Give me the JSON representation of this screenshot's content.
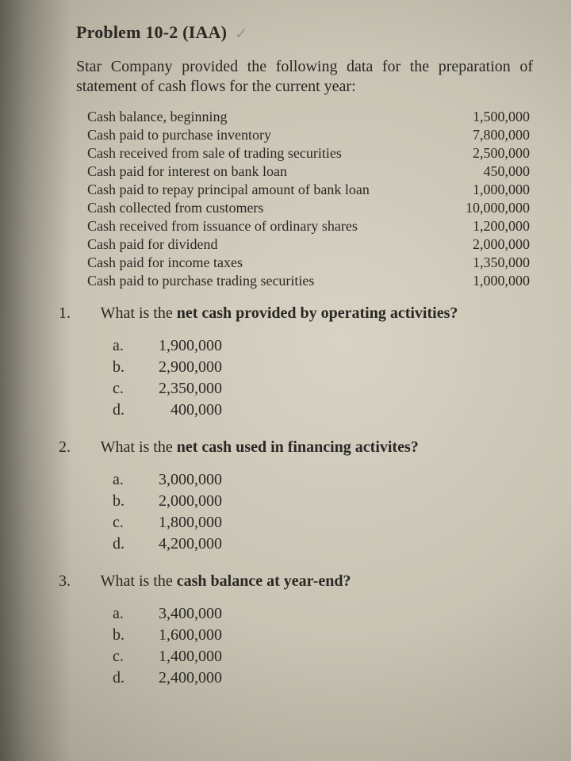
{
  "title_prefix": "Problem 10-2  (IAA)",
  "intro": "Star Company provided the following data for the preparation of statement of cash flows for the current year:",
  "data_rows": [
    {
      "label": "Cash balance, beginning",
      "value": "1,500,000"
    },
    {
      "label": "Cash paid to purchase inventory",
      "value": "7,800,000"
    },
    {
      "label": "Cash received from sale of trading securities",
      "value": "2,500,000"
    },
    {
      "label": "Cash paid for interest on bank loan",
      "value": "450,000"
    },
    {
      "label": "Cash paid to repay principal amount of bank loan",
      "value": "1,000,000"
    },
    {
      "label": "Cash collected from customers",
      "value": "10,000,000"
    },
    {
      "label": "Cash received from issuance of ordinary shares",
      "value": "1,200,000"
    },
    {
      "label": "Cash paid for dividend",
      "value": "2,000,000"
    },
    {
      "label": "Cash paid for income taxes",
      "value": "1,350,000"
    },
    {
      "label": "Cash paid to purchase trading securities",
      "value": "1,000,000"
    }
  ],
  "questions": [
    {
      "num": "1.",
      "pre": "What is the ",
      "bold": "net cash provided by operating activities?",
      "post": "",
      "opts": [
        {
          "let": "a.",
          "val": "1,900,000"
        },
        {
          "let": "b.",
          "val": "2,900,000"
        },
        {
          "let": "c.",
          "val": "2,350,000"
        },
        {
          "let": "d.",
          "val": "400,000"
        }
      ]
    },
    {
      "num": "2.",
      "pre": "What is the ",
      "bold": "net cash used in financing activites?",
      "post": "",
      "opts": [
        {
          "let": "a.",
          "val": "3,000,000"
        },
        {
          "let": "b.",
          "val": "2,000,000"
        },
        {
          "let": "c.",
          "val": "1,800,000"
        },
        {
          "let": "d.",
          "val": "4,200,000"
        }
      ]
    },
    {
      "num": "3.",
      "pre": "What is the ",
      "bold": "cash balance at year-end?",
      "post": "",
      "opts": [
        {
          "let": "a.",
          "val": "3,400,000"
        },
        {
          "let": "b.",
          "val": "1,600,000"
        },
        {
          "let": "c.",
          "val": "1,400,000"
        },
        {
          "let": "d.",
          "val": "2,400,000"
        }
      ]
    }
  ]
}
